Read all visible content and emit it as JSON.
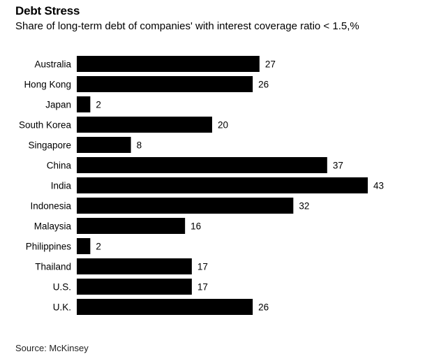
{
  "header": {
    "title": "Debt Stress",
    "subtitle": "Share of long-term debt of companies' with interest coverage ratio < 1.5,%"
  },
  "footer": {
    "source": "Source: McKinsey"
  },
  "colors": {
    "bar": "#000000",
    "background": "#ffffff"
  },
  "chart_data": {
    "type": "bar",
    "orientation": "horizontal",
    "title": "Debt Stress",
    "subtitle": "Share of long-term debt of companies' with interest coverage ratio < 1.5,%",
    "categories": [
      "Australia",
      "Hong Kong",
      "Japan",
      "South Korea",
      "Singapore",
      "China",
      "India",
      "Indonesia",
      "Malaysia",
      "Philippines",
      "Thailand",
      "U.S.",
      "U.K."
    ],
    "values": [
      27,
      26,
      2,
      20,
      8,
      37,
      43,
      32,
      16,
      2,
      17,
      17,
      26
    ],
    "xlim": [
      0,
      43
    ],
    "grid": false,
    "legend": "none",
    "data_labels": true
  }
}
